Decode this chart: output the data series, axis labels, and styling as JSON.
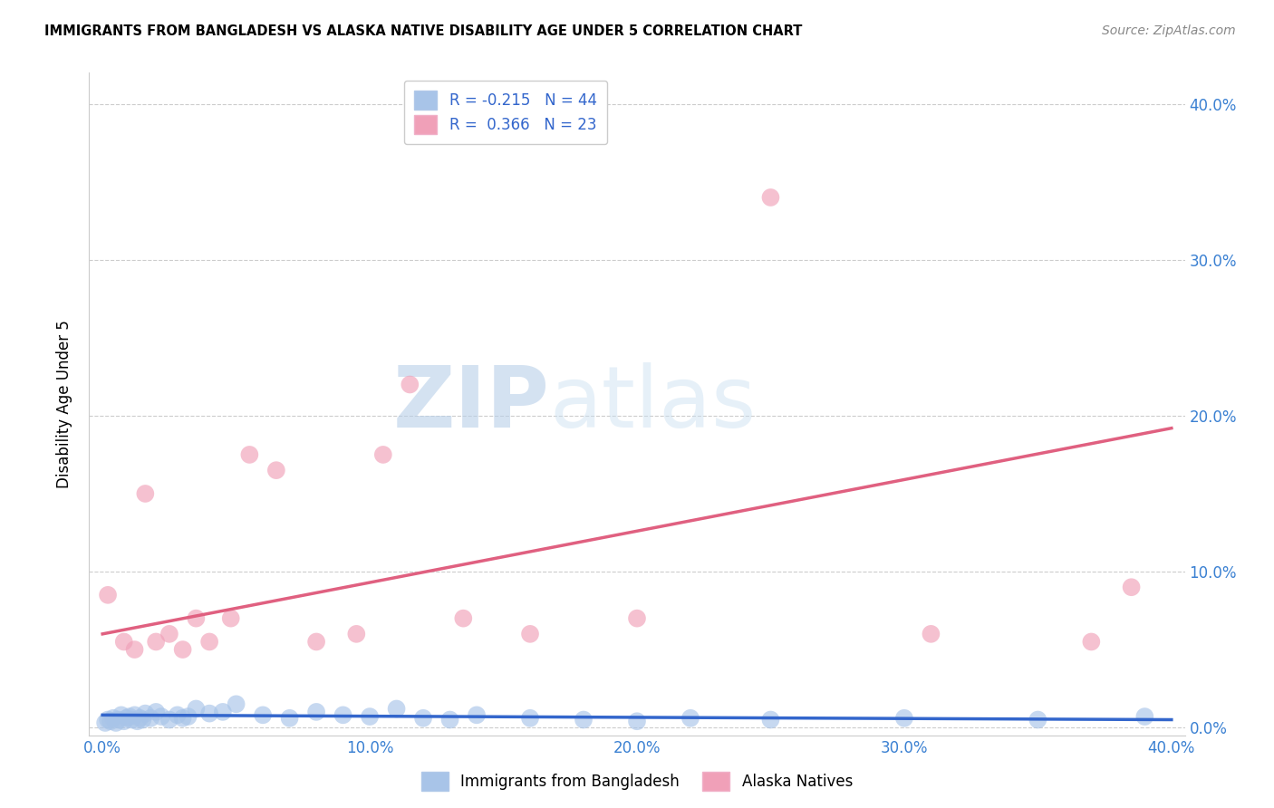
{
  "title": "IMMIGRANTS FROM BANGLADESH VS ALASKA NATIVE DISABILITY AGE UNDER 5 CORRELATION CHART",
  "source": "Source: ZipAtlas.com",
  "ylabel": "Disability Age Under 5",
  "R_blue": -0.215,
  "N_blue": 44,
  "R_pink": 0.366,
  "N_pink": 23,
  "xlim": [
    0.0,
    0.4
  ],
  "ylim": [
    0.0,
    0.42
  ],
  "yticks": [
    0.0,
    0.1,
    0.2,
    0.3,
    0.4
  ],
  "xticks": [
    0.0,
    0.1,
    0.2,
    0.3,
    0.4
  ],
  "blue_color": "#a8c4e8",
  "pink_color": "#f0a0b8",
  "blue_line_color": "#3366cc",
  "pink_line_color": "#e06080",
  "watermark_ZIP": "ZIP",
  "watermark_atlas": "atlas",
  "blue_scatter_x": [
    0.001,
    0.002,
    0.003,
    0.004,
    0.005,
    0.006,
    0.007,
    0.008,
    0.009,
    0.01,
    0.011,
    0.012,
    0.013,
    0.014,
    0.015,
    0.016,
    0.018,
    0.02,
    0.022,
    0.025,
    0.028,
    0.03,
    0.032,
    0.035,
    0.04,
    0.045,
    0.05,
    0.06,
    0.07,
    0.08,
    0.09,
    0.1,
    0.11,
    0.12,
    0.13,
    0.14,
    0.16,
    0.18,
    0.2,
    0.22,
    0.25,
    0.3,
    0.35,
    0.39
  ],
  "blue_scatter_y": [
    0.003,
    0.005,
    0.004,
    0.006,
    0.003,
    0.005,
    0.008,
    0.004,
    0.006,
    0.007,
    0.005,
    0.008,
    0.004,
    0.006,
    0.005,
    0.009,
    0.006,
    0.01,
    0.007,
    0.005,
    0.008,
    0.006,
    0.007,
    0.012,
    0.009,
    0.01,
    0.015,
    0.008,
    0.006,
    0.01,
    0.008,
    0.007,
    0.012,
    0.006,
    0.005,
    0.008,
    0.006,
    0.005,
    0.004,
    0.006,
    0.005,
    0.006,
    0.005,
    0.007
  ],
  "pink_scatter_x": [
    0.002,
    0.008,
    0.012,
    0.016,
    0.02,
    0.025,
    0.03,
    0.035,
    0.04,
    0.048,
    0.055,
    0.065,
    0.08,
    0.095,
    0.105,
    0.115,
    0.135,
    0.16,
    0.2,
    0.25,
    0.31,
    0.37,
    0.385
  ],
  "pink_scatter_y": [
    0.085,
    0.055,
    0.05,
    0.15,
    0.055,
    0.06,
    0.05,
    0.07,
    0.055,
    0.07,
    0.175,
    0.165,
    0.055,
    0.06,
    0.175,
    0.22,
    0.07,
    0.06,
    0.07,
    0.34,
    0.06,
    0.055,
    0.09
  ],
  "pink_line_start_y": 0.06,
  "pink_line_end_y": 0.192,
  "blue_line_start_y": 0.008,
  "blue_line_end_y": 0.005
}
